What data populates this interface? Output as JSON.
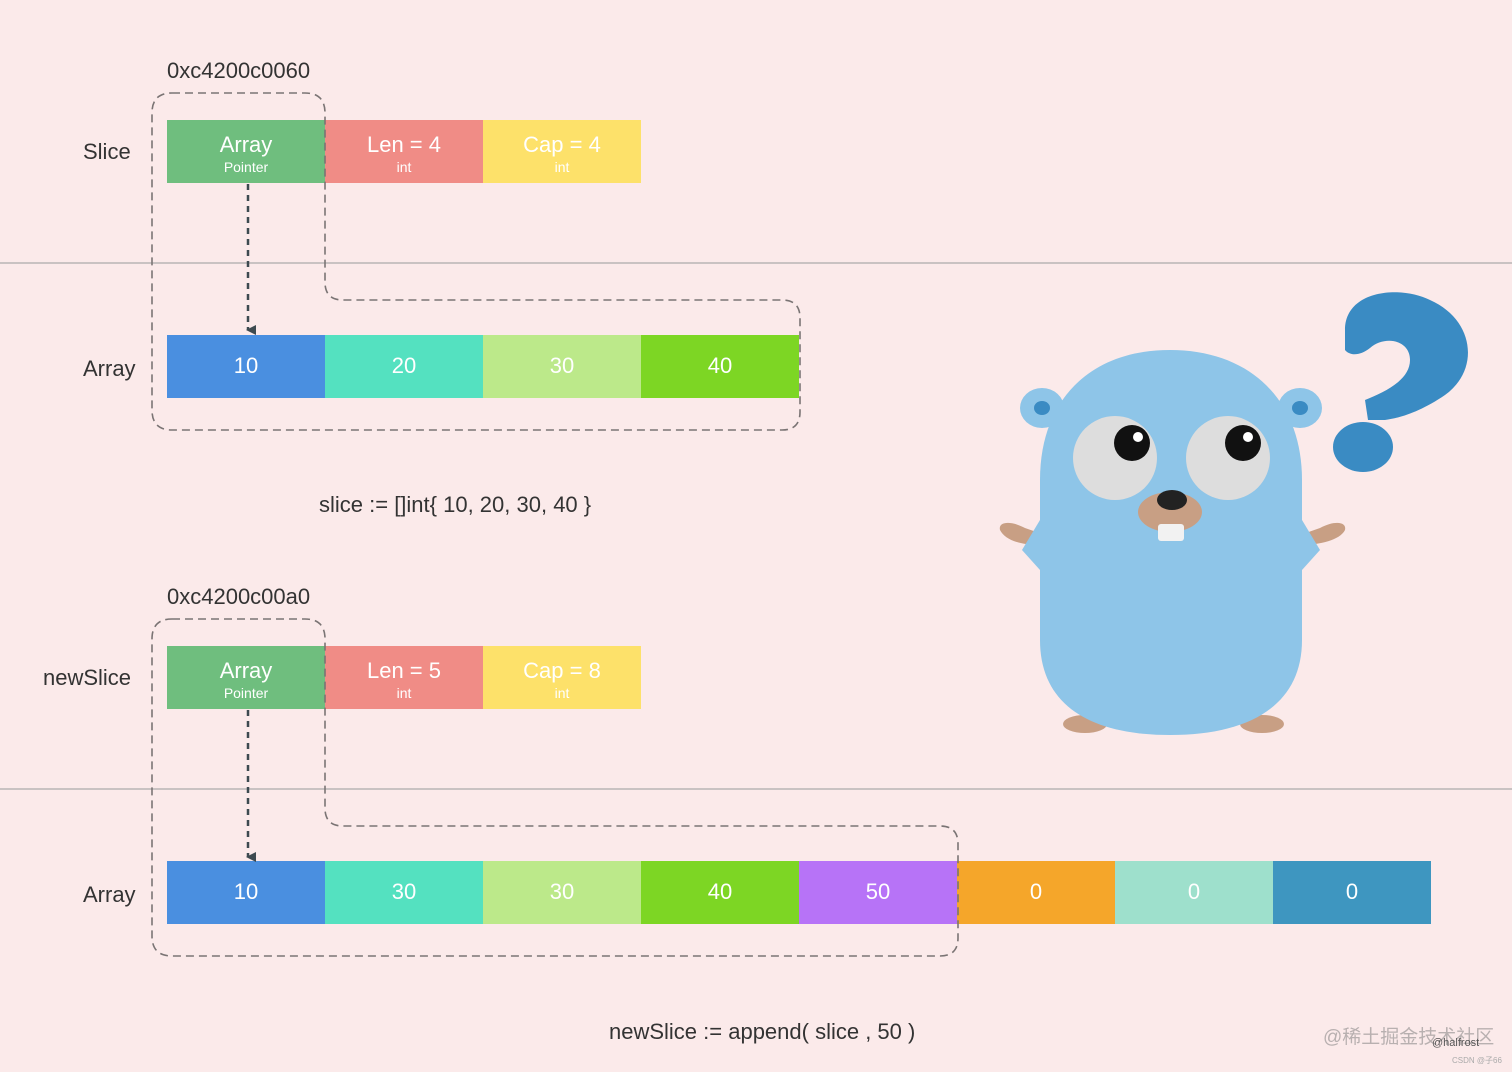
{
  "diagram1": {
    "address": "0xc4200c0060",
    "slice_label": "Slice",
    "array_label": "Array",
    "header": [
      {
        "main": "Array",
        "sub": "Pointer",
        "color": "#6fbe7e"
      },
      {
        "main": "Len = 4",
        "sub": "int",
        "color": "#f08c86"
      },
      {
        "main": "Cap = 4",
        "sub": "int",
        "color": "#fde16a"
      }
    ],
    "values": [
      {
        "v": "10",
        "color": "#4a8fe0"
      },
      {
        "v": "20",
        "color": "#54e1c0"
      },
      {
        "v": "30",
        "color": "#bce98a"
      },
      {
        "v": "40",
        "color": "#7dd624"
      }
    ],
    "caption": "slice := []int{ 10, 20, 30, 40 }"
  },
  "diagram2": {
    "address": "0xc4200c00a0",
    "slice_label": "newSlice",
    "array_label": "Array",
    "header": [
      {
        "main": "Array",
        "sub": "Pointer",
        "color": "#6fbe7e"
      },
      {
        "main": "Len = 5",
        "sub": "int",
        "color": "#f08c86"
      },
      {
        "main": "Cap = 8",
        "sub": "int",
        "color": "#fde16a"
      }
    ],
    "values": [
      {
        "v": "10",
        "color": "#4a8fe0"
      },
      {
        "v": "30",
        "color": "#54e1c0"
      },
      {
        "v": "30",
        "color": "#bce98a"
      },
      {
        "v": "40",
        "color": "#7dd624"
      },
      {
        "v": "50",
        "color": "#b773f7"
      },
      {
        "v": "0",
        "color": "#f5a62a"
      },
      {
        "v": "0",
        "color": "#9ee0cc"
      },
      {
        "v": "0",
        "color": "#3e96c0"
      }
    ],
    "caption": "newSlice := append( slice , 50 )"
  },
  "watermark": {
    "site": "@稀土掘金技术社区",
    "author": "@halfrost",
    "csdn": "CSDN @子66"
  },
  "gopher": {
    "body_color": "#8ec5e8",
    "question_color": "#3a8bc3"
  }
}
